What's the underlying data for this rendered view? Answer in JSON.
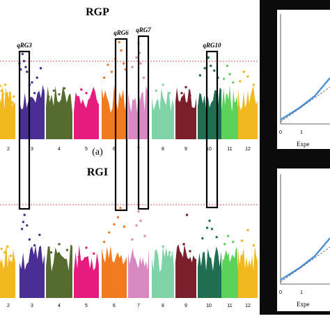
{
  "figure": {
    "panel_label": "(a)",
    "side_label": "Expe",
    "side_ticks": [
      "0",
      "1"
    ]
  },
  "chart_data": [
    {
      "type": "scatter",
      "title": "RGP",
      "xlabel": "",
      "ylabel": "",
      "categories": [
        "2",
        "3",
        "4",
        "5",
        "6",
        "7",
        "8",
        "9",
        "10",
        "11",
        "12"
      ],
      "ylim": [
        0,
        10
      ],
      "threshold": 5.8,
      "series": [
        {
          "chrom": "1",
          "color": "#F2B81F",
          "points": [
            [
              0,
              4.5
            ],
            [
              0.1,
              4.1
            ],
            [
              0.2,
              3.8
            ],
            [
              0.35,
              4.6
            ],
            [
              0.5,
              3.4
            ],
            [
              0.65,
              3.9
            ],
            [
              0.8,
              3.1
            ],
            [
              0.9,
              3.6
            ]
          ]
        },
        {
          "chrom": "3",
          "color": "#4A2E94",
          "points": [
            [
              0,
              6.4
            ],
            [
              0.05,
              5.9
            ],
            [
              0.12,
              7.2
            ],
            [
              0.18,
              6.6
            ],
            [
              0.25,
              6.1
            ],
            [
              0.3,
              5.7
            ],
            [
              0.4,
              4.6
            ],
            [
              0.5,
              4.8
            ],
            [
              0.6,
              3.9
            ],
            [
              0.7,
              5.2
            ],
            [
              0.85,
              6.0
            ],
            [
              0.95,
              4.1
            ]
          ]
        },
        {
          "chrom": "4",
          "color": "#556B2F",
          "points": [
            [
              0.1,
              3.6
            ],
            [
              0.3,
              4.1
            ],
            [
              0.5,
              3.8
            ],
            [
              0.7,
              4.3
            ],
            [
              0.9,
              3.5
            ]
          ]
        },
        {
          "chrom": "5",
          "color": "#E51C7E",
          "points": [
            [
              0.1,
              3.4
            ],
            [
              0.3,
              4.2
            ],
            [
              0.5,
              3.9
            ],
            [
              0.7,
              3.6
            ],
            [
              0.9,
              3.2
            ]
          ]
        },
        {
          "chrom": "6",
          "color": "#F37B1F",
          "points": [
            [
              0.1,
              5.2
            ],
            [
              0.25,
              6.3
            ],
            [
              0.4,
              5.7
            ],
            [
              0.55,
              6.8
            ],
            [
              0.7,
              8.2
            ],
            [
              0.78,
              7.5
            ],
            [
              0.88,
              6.4
            ],
            [
              0.95,
              5.9
            ]
          ]
        },
        {
          "chrom": "7",
          "color": "#D989C1",
          "points": [
            [
              0.2,
              6.1
            ],
            [
              0.4,
              6.9
            ],
            [
              0.5,
              8.1
            ],
            [
              0.55,
              7.3
            ],
            [
              0.6,
              6.4
            ],
            [
              0.75,
              5.2
            ]
          ]
        },
        {
          "chrom": "8",
          "color": "#7FD3A6",
          "points": [
            [
              0.2,
              4.1
            ],
            [
              0.5,
              4.6
            ],
            [
              0.8,
              3.9
            ]
          ]
        },
        {
          "chrom": "9",
          "color": "#7A1F2B",
          "points": [
            [
              0.3,
              3.9
            ],
            [
              0.5,
              4.4
            ],
            [
              0.7,
              3.7
            ]
          ]
        },
        {
          "chrom": "10",
          "color": "#1F6E52",
          "points": [
            [
              0.1,
              5.4
            ],
            [
              0.3,
              6.0
            ],
            [
              0.45,
              6.9
            ],
            [
              0.55,
              6.2
            ],
            [
              0.7,
              5.8
            ],
            [
              0.85,
              5.2
            ]
          ]
        },
        {
          "chrom": "11",
          "color": "#5BD35B",
          "points": [
            [
              0.15,
              5.1
            ],
            [
              0.35,
              6.2
            ],
            [
              0.5,
              5.5
            ],
            [
              0.7,
              4.8
            ]
          ]
        },
        {
          "chrom": "12",
          "color": "#F2B81F",
          "points": [
            [
              0.1,
              4.9
            ],
            [
              0.3,
              5.7
            ],
            [
              0.5,
              5.3
            ],
            [
              0.8,
              4.6
            ]
          ]
        }
      ],
      "annotations": [
        {
          "label": "qRG3",
          "chrom": "3"
        },
        {
          "label": "qRG6",
          "chrom": "6"
        },
        {
          "label": "qRG7",
          "chrom": "7"
        },
        {
          "label": "qRG10",
          "chrom": "10"
        }
      ]
    },
    {
      "type": "scatter",
      "title": "RGI",
      "xlabel": "",
      "ylabel": "",
      "categories": [
        "2",
        "3",
        "4",
        "5",
        "6",
        "7",
        "8",
        "9",
        "10",
        "11",
        "12"
      ],
      "ylim": [
        0,
        10
      ],
      "threshold": 5.8,
      "series": [
        {
          "chrom": "1",
          "color": "#F2B81F",
          "points": [
            [
              0.1,
              4.2
            ],
            [
              0.3,
              3.9
            ],
            [
              0.5,
              4.4
            ],
            [
              0.7,
              3.6
            ],
            [
              0.9,
              3.2
            ]
          ]
        },
        {
          "chrom": "3",
          "color": "#4A2E94",
          "points": [
            [
              0.1,
              5.9
            ],
            [
              0.15,
              6.5
            ],
            [
              0.2,
              7.1
            ],
            [
              0.3,
              6.2
            ],
            [
              0.4,
              5.0
            ],
            [
              0.6,
              4.5
            ],
            [
              0.8,
              5.4
            ]
          ]
        },
        {
          "chrom": "4",
          "color": "#556B2F",
          "points": [
            [
              0.2,
              3.9
            ],
            [
              0.5,
              4.6
            ],
            [
              0.8,
              4.1
            ]
          ]
        },
        {
          "chrom": "5",
          "color": "#E51C7E",
          "points": [
            [
              0.2,
              3.5
            ],
            [
              0.5,
              4.3
            ],
            [
              0.8,
              3.8
            ]
          ]
        },
        {
          "chrom": "6",
          "color": "#F37B1F",
          "points": [
            [
              0.1,
              4.8
            ],
            [
              0.3,
              5.6
            ],
            [
              0.5,
              6.3
            ],
            [
              0.65,
              6.9
            ],
            [
              0.75,
              7.7
            ],
            [
              0.9,
              6.1
            ]
          ]
        },
        {
          "chrom": "7",
          "color": "#D989C1",
          "points": [
            [
              0.2,
              5.0
            ],
            [
              0.4,
              6.2
            ],
            [
              0.5,
              7.4
            ],
            [
              0.6,
              6.6
            ],
            [
              0.8,
              5.3
            ]
          ]
        },
        {
          "chrom": "8",
          "color": "#7FD3A6",
          "points": [
            [
              0.2,
              3.7
            ],
            [
              0.5,
              4.4
            ],
            [
              0.8,
              3.9
            ]
          ]
        },
        {
          "chrom": "9",
          "color": "#7A1F2B",
          "points": [
            [
              0.4,
              4.6
            ],
            [
              0.55,
              7.1
            ],
            [
              0.7,
              4.0
            ]
          ]
        },
        {
          "chrom": "10",
          "color": "#1F6E52",
          "points": [
            [
              0.2,
              5.1
            ],
            [
              0.4,
              6.0
            ],
            [
              0.5,
              6.6
            ],
            [
              0.6,
              5.9
            ],
            [
              0.8,
              5.2
            ]
          ]
        },
        {
          "chrom": "11",
          "color": "#5BD35B",
          "points": [
            [
              0.2,
              4.6
            ],
            [
              0.4,
              5.3
            ],
            [
              0.7,
              4.8
            ]
          ]
        },
        {
          "chrom": "12",
          "color": "#F2B81F",
          "points": [
            [
              0.2,
              4.9
            ],
            [
              0.5,
              5.8
            ],
            [
              0.8,
              4.5
            ]
          ]
        }
      ],
      "annotations": []
    }
  ]
}
